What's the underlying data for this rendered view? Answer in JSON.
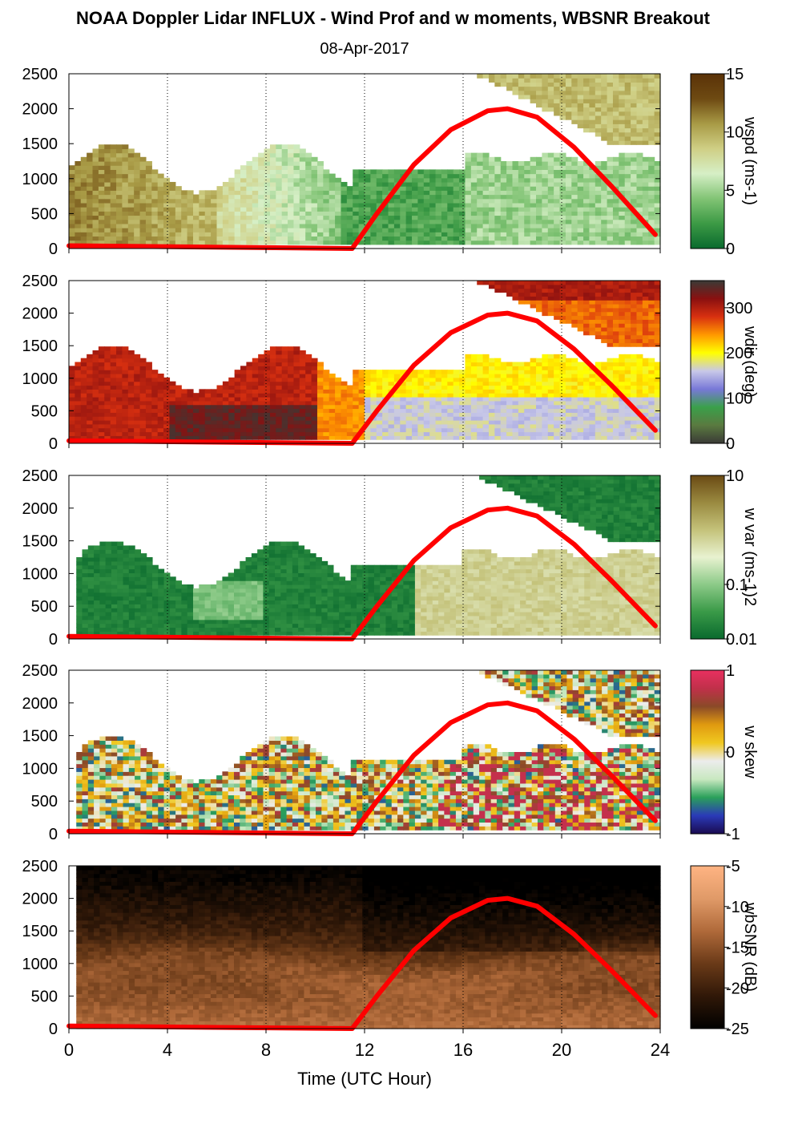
{
  "title": "NOAA Doppler Lidar INFLUX - Wind Prof and w moments, WBSNR Breakout",
  "date": "08-Apr-2017",
  "chart_data": [
    {
      "type": "heatmap",
      "panel": "wind speed",
      "colorbar_label": "wspd (ms-1)",
      "colorbar_ticks": [
        "0",
        "5",
        "10",
        "15"
      ],
      "colorbar_range": [
        0,
        15
      ],
      "y_ticks": [
        "0",
        "500",
        "1000",
        "1500",
        "2000",
        "2500"
      ],
      "ylim": [
        0,
        2500
      ],
      "xlim": [
        0,
        24
      ]
    },
    {
      "type": "heatmap",
      "panel": "wind direction",
      "colorbar_label": "wdir (deg)",
      "colorbar_ticks": [
        "0",
        "100",
        "200",
        "300"
      ],
      "colorbar_range": [
        0,
        360
      ],
      "y_ticks": [
        "0",
        "500",
        "1000",
        "1500",
        "2000",
        "2500"
      ],
      "ylim": [
        0,
        2500
      ],
      "xlim": [
        0,
        24
      ]
    },
    {
      "type": "heatmap",
      "panel": "vertical velocity variance",
      "colorbar_label": "w var (ms-1)2",
      "colorbar_ticks": [
        "0.01",
        "0.1",
        "10"
      ],
      "colorbar_range": [
        0.01,
        10
      ],
      "colorbar_scale": "log",
      "y_ticks": [
        "0",
        "500",
        "1000",
        "1500",
        "2000",
        "2500"
      ],
      "ylim": [
        0,
        2500
      ],
      "xlim": [
        0,
        24
      ]
    },
    {
      "type": "heatmap",
      "panel": "vertical velocity skewness",
      "colorbar_label": "w skew",
      "colorbar_ticks": [
        "-1",
        "0",
        "1"
      ],
      "colorbar_range": [
        -1,
        1
      ],
      "y_ticks": [
        "0",
        "500",
        "1000",
        "1500",
        "2000",
        "2500"
      ],
      "ylim": [
        0,
        2500
      ],
      "xlim": [
        0,
        24
      ]
    },
    {
      "type": "heatmap",
      "panel": "wideband SNR",
      "colorbar_label": "wbSNR (dB)",
      "colorbar_ticks": [
        "-25",
        "-20",
        "-15",
        "-10",
        "-5"
      ],
      "colorbar_range": [
        -25,
        -5
      ],
      "y_ticks": [
        "0",
        "500",
        "1000",
        "1500",
        "2000",
        "2500"
      ],
      "ylim": [
        0,
        2500
      ],
      "xlim": [
        0,
        24
      ]
    }
  ],
  "x_axis": {
    "label": "Time (UTC Hour)",
    "ticks": [
      "0",
      "4",
      "8",
      "12",
      "16",
      "20",
      "24"
    ],
    "range": [
      0,
      24
    ]
  },
  "overlay_curve": {
    "color": "#ff0000",
    "points": [
      [
        0,
        40
      ],
      [
        11.5,
        0
      ],
      [
        12.5,
        500
      ],
      [
        14,
        1200
      ],
      [
        15.5,
        1700
      ],
      [
        17,
        1970
      ],
      [
        17.8,
        2000
      ],
      [
        19,
        1880
      ],
      [
        20.5,
        1450
      ],
      [
        22,
        900
      ],
      [
        23.8,
        200
      ]
    ]
  }
}
